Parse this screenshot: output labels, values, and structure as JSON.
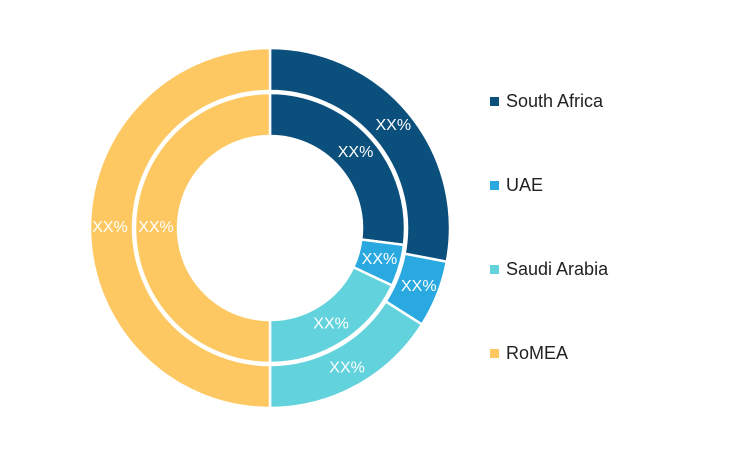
{
  "chart_data": {
    "type": "pie",
    "variant": "nested-donut",
    "title": "",
    "legend_position": "right",
    "categories": [
      "South Africa",
      "UAE",
      "Saudi Arabia",
      "RoMEA"
    ],
    "colors": {
      "South Africa": "#0b4f7c",
      "UAE": "#2aa9e0",
      "Saudi Arabia": "#62d2dc",
      "RoMEA": "#fdc862"
    },
    "series": [
      {
        "ring": "outer",
        "values": [
          28,
          6,
          16,
          50
        ],
        "labels": [
          "XX%",
          "XX%",
          "XX%",
          "XX%"
        ]
      },
      {
        "ring": "inner",
        "values": [
          27,
          5,
          18,
          50
        ],
        "labels": [
          "XX%",
          "XX%",
          "XX%",
          "XX%"
        ]
      }
    ]
  }
}
